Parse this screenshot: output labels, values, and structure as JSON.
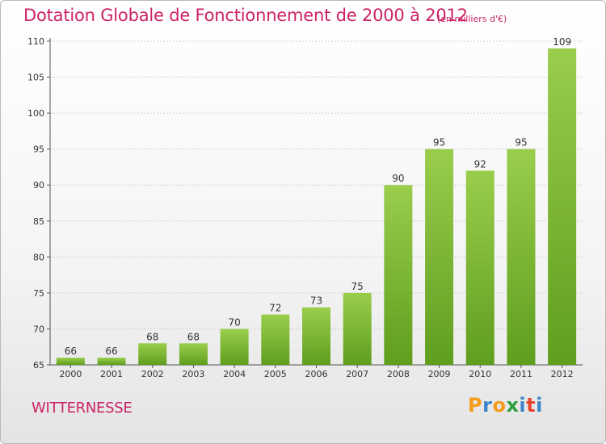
{
  "title": "Dotation Globale de Fonctionnement de 2000 à 2012",
  "subtitle": "(en milliers d'€)",
  "commune": "WITTERNESSE",
  "logo": {
    "letters": [
      "P",
      "r",
      "o",
      "x",
      "i",
      "t",
      "i"
    ],
    "colors": [
      "#f39c1b",
      "#3d86c9",
      "#f39c1b",
      "#2a9e3e",
      "#3d86c9",
      "#e8432e",
      "#3d86c9"
    ]
  },
  "colors": {
    "accent": "#cc2266",
    "bar_top": "#9acd4c",
    "bar_bottom": "#5f9e1e",
    "grid": "#d0d0d0"
  },
  "chart_data": {
    "type": "bar",
    "categories": [
      "2000",
      "2001",
      "2002",
      "2003",
      "2004",
      "2005",
      "2006",
      "2007",
      "2008",
      "2009",
      "2010",
      "2011",
      "2012"
    ],
    "values": [
      66,
      66,
      68,
      68,
      70,
      72,
      73,
      75,
      90,
      95,
      92,
      95,
      109
    ],
    "ylim": [
      65,
      110
    ],
    "yticks": [
      65,
      70,
      75,
      80,
      85,
      90,
      95,
      100,
      105,
      110
    ],
    "grid": true,
    "xlabel": "",
    "ylabel": ""
  }
}
